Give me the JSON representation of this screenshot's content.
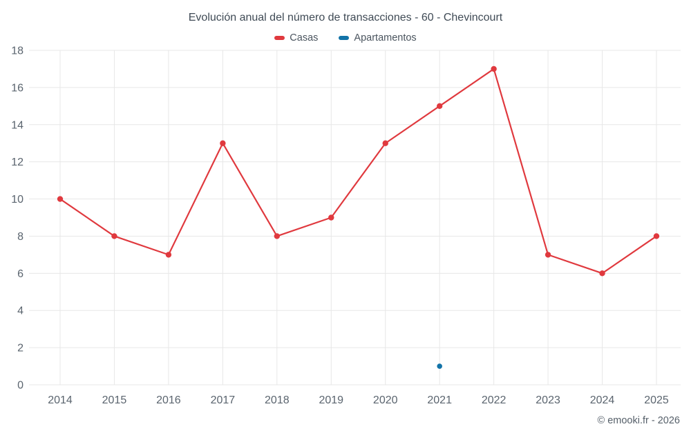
{
  "title": "Evolución anual del número de transacciones - 60 - Chevincourt",
  "legend": [
    {
      "label": "Casas",
      "color": "#e0393e"
    },
    {
      "label": "Apartamentos",
      "color": "#1273a8"
    }
  ],
  "footer": {
    "credit": "© emooki.fr - 2026"
  },
  "chart_data": {
    "type": "line",
    "title": "Evolución anual del número de transacciones - 60 - Chevincourt",
    "x": [
      2014,
      2015,
      2016,
      2017,
      2018,
      2019,
      2020,
      2021,
      2022,
      2023,
      2024,
      2025
    ],
    "series": [
      {
        "name": "Casas",
        "color": "#e0393e",
        "values": [
          10,
          8,
          7,
          13,
          8,
          9,
          13,
          15,
          17,
          7,
          6,
          8
        ]
      },
      {
        "name": "Apartamentos",
        "color": "#1273a8",
        "values": [
          null,
          null,
          null,
          null,
          null,
          null,
          null,
          1,
          null,
          null,
          null,
          null
        ]
      }
    ],
    "xlabel": "",
    "ylabel": "",
    "ylim": [
      0,
      18
    ],
    "ytick_step": 2,
    "grid": true,
    "legend_position": "top"
  }
}
